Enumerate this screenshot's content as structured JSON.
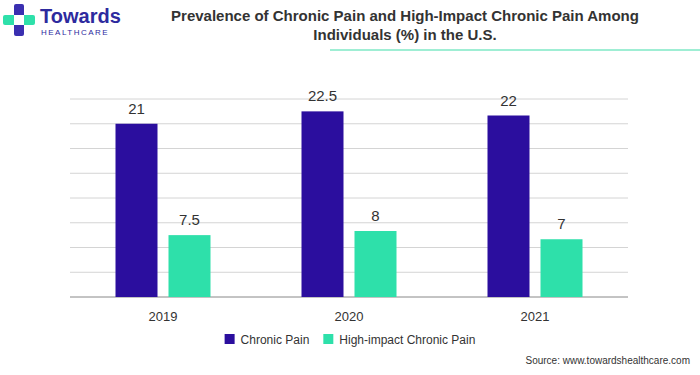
{
  "chart_data": {
    "type": "bar",
    "title": "Prevalence of Chronic Pain and High-Impact Chronic Pain Among Individuals (%) in the U.S.",
    "categories": [
      "2019",
      "2020",
      "2021"
    ],
    "series": [
      {
        "name": "Chronic Pain",
        "color": "#2b0e9e",
        "values": [
          21,
          22.5,
          22
        ]
      },
      {
        "name": "High-impact Chronic Pain",
        "color": "#2ee0aa",
        "values": [
          7.5,
          8,
          7
        ]
      }
    ],
    "ylim": [
      0,
      24
    ],
    "yticks": [
      0,
      3,
      6,
      9,
      12,
      15,
      18,
      21,
      24
    ],
    "grid": true,
    "data_labels": true,
    "tick_labels": "x",
    "legend": "bottom",
    "annotations": [
      "Towards",
      "HEALTHCARE",
      "Source: www.towardshealthcare.com"
    ]
  }
}
